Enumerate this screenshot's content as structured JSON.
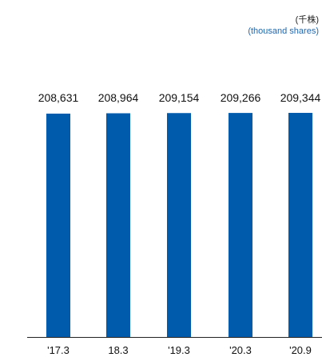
{
  "unit": {
    "ja": "(千株)",
    "en": "(thousand shares)"
  },
  "colors": {
    "bar": "#005bac",
    "unit_en": "#1f67b1",
    "axis": "#222222"
  },
  "chart_data": {
    "type": "bar",
    "categories": [
      "'17.3",
      "18.3",
      "'19.3",
      "'20.3",
      "'20.9"
    ],
    "values": [
      208631,
      208964,
      209154,
      209266,
      209344
    ],
    "value_labels": [
      "208,631",
      "208,964",
      "209,154",
      "209,266",
      "209,344"
    ],
    "title": "",
    "xlabel": "",
    "ylabel": "(thousand shares)",
    "ylim": [
      0,
      209344
    ],
    "grid": false,
    "legend": "none"
  }
}
